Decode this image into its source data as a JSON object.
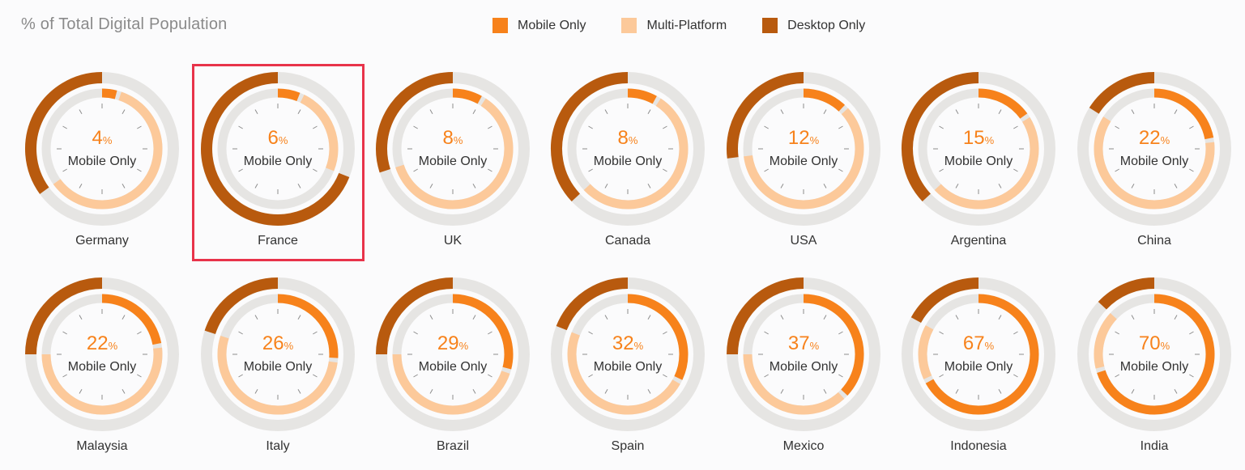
{
  "title": "% of Total Digital Population",
  "legend": [
    {
      "label": "Mobile Only",
      "color": "#f7821b"
    },
    {
      "label": "Multi-Platform",
      "color": "#fcc99a"
    },
    {
      "label": "Desktop Only",
      "color": "#b85a0e"
    }
  ],
  "colors": {
    "mobile": "#f7821b",
    "multi": "#fcc99a",
    "desktop": "#b85a0e",
    "track": "#e6e5e3",
    "tick": "#8c8c8c",
    "highlight": "#e8334a"
  },
  "center_label": "Mobile Only",
  "percent_sign": "%",
  "highlighted_country": "France",
  "chart_data": {
    "type": "donut",
    "title": "% of Total Digital Population",
    "series_names": [
      "Mobile Only",
      "Multi-Platform",
      "Desktop Only"
    ],
    "items": [
      {
        "country": "Germany",
        "mobile": 4,
        "multi": 61,
        "desktop": 35
      },
      {
        "country": "France",
        "mobile": 6,
        "multi": 25,
        "desktop": 69
      },
      {
        "country": "UK",
        "mobile": 8,
        "multi": 62,
        "desktop": 30
      },
      {
        "country": "Canada",
        "mobile": 8,
        "multi": 55,
        "desktop": 37
      },
      {
        "country": "USA",
        "mobile": 12,
        "multi": 61,
        "desktop": 27
      },
      {
        "country": "Argentina",
        "mobile": 15,
        "multi": 48,
        "desktop": 37
      },
      {
        "country": "China",
        "mobile": 22,
        "multi": 62,
        "desktop": 16
      },
      {
        "country": "Malaysia",
        "mobile": 22,
        "multi": 53,
        "desktop": 25
      },
      {
        "country": "Italy",
        "mobile": 26,
        "multi": 54,
        "desktop": 20
      },
      {
        "country": "Brazil",
        "mobile": 29,
        "multi": 46,
        "desktop": 25
      },
      {
        "country": "Spain",
        "mobile": 32,
        "multi": 49,
        "desktop": 19
      },
      {
        "country": "Mexico",
        "mobile": 37,
        "multi": 38,
        "desktop": 25
      },
      {
        "country": "Indonesia",
        "mobile": 67,
        "multi": 16,
        "desktop": 17
      },
      {
        "country": "India",
        "mobile": 70,
        "multi": 17,
        "desktop": 13
      }
    ]
  }
}
